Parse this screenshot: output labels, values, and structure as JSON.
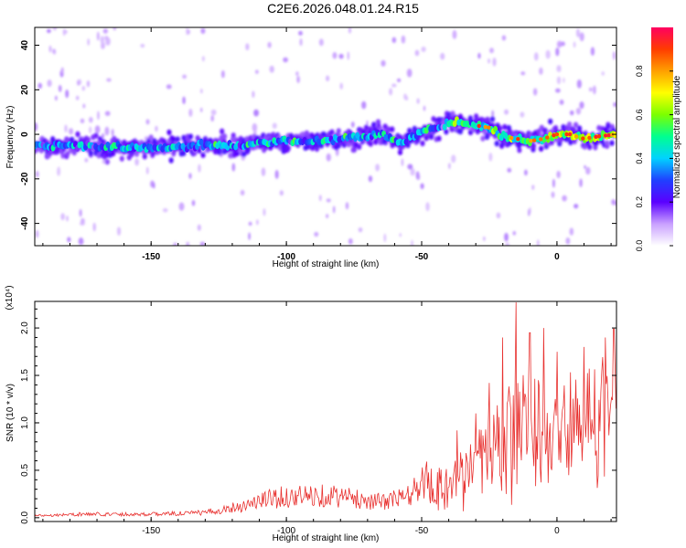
{
  "title": "C2E6.2026.048.01.24.R15",
  "chart_data": [
    {
      "type": "heatmap",
      "xlabel": "Height of straight line (km)",
      "ylabel": "Frequency (Hz)",
      "xlim": [
        -193,
        22
      ],
      "ylim": [
        -50,
        48
      ],
      "x_ticks": [
        -150,
        -100,
        -50,
        0
      ],
      "x_tick_labels": [
        "-150",
        "-100",
        "-50",
        "0"
      ],
      "y_ticks": [
        -40,
        -20,
        0,
        20,
        40
      ],
      "y_tick_labels": [
        "-40",
        "-20",
        "0",
        "20",
        "40"
      ],
      "colorbar": {
        "label": "Normalized spectral amplitude",
        "range": [
          0,
          1
        ],
        "ticks": [
          0.0,
          0.2,
          0.4,
          0.6,
          0.8
        ],
        "tick_labels": [
          "0.0",
          "0.2",
          "0.4",
          "0.6",
          "0.8"
        ],
        "colors": [
          "#ffffff",
          "#c9a0ff",
          "#5a00ff",
          "#2040ff",
          "#00d2ff",
          "#00ff90",
          "#7cff00",
          "#ffff00",
          "#ffa000",
          "#ff3c00",
          "#ff0060"
        ]
      },
      "ridge": [
        {
          "x": -193,
          "y": -5
        },
        {
          "x": -175,
          "y": -5
        },
        {
          "x": -160,
          "y": -6
        },
        {
          "x": -145,
          "y": -6
        },
        {
          "x": -130,
          "y": -5
        },
        {
          "x": -115,
          "y": -5
        },
        {
          "x": -105,
          "y": -3
        },
        {
          "x": -95,
          "y": -3
        },
        {
          "x": -85,
          "y": -3
        },
        {
          "x": -75,
          "y": -1
        },
        {
          "x": -65,
          "y": 0
        },
        {
          "x": -58,
          "y": -4
        },
        {
          "x": -50,
          "y": 1
        },
        {
          "x": -45,
          "y": 3
        },
        {
          "x": -38,
          "y": 6
        },
        {
          "x": -34,
          "y": 5
        },
        {
          "x": -30,
          "y": 4
        },
        {
          "x": -25,
          "y": 3
        },
        {
          "x": -20,
          "y": -1
        },
        {
          "x": -15,
          "y": -2
        },
        {
          "x": -10,
          "y": -3
        },
        {
          "x": -5,
          "y": -2
        },
        {
          "x": 0,
          "y": 0
        },
        {
          "x": 5,
          "y": 0
        },
        {
          "x": 10,
          "y": -2
        },
        {
          "x": 15,
          "y": -1
        },
        {
          "x": 22,
          "y": 0
        }
      ]
    },
    {
      "type": "line",
      "xlabel": "Height of straight line (km)",
      "ylabel": "SNR (10 * v/v)",
      "y_multiplier": "(x10⁴)",
      "xlim": [
        -193,
        22
      ],
      "ylim": [
        -0.04,
        2.28
      ],
      "x_ticks": [
        -150,
        -100,
        -50,
        0
      ],
      "x_tick_labels": [
        "-150",
        "-100",
        "-50",
        "0"
      ],
      "y_ticks": [
        0.0,
        0.5,
        1.0,
        1.5,
        2.0
      ],
      "y_tick_labels": [
        "0.0",
        "0.5",
        "1.0",
        "1.5",
        "2.0"
      ],
      "series_color": "#e8312f",
      "envelope": [
        {
          "x": -193,
          "y": 0.03
        },
        {
          "x": -175,
          "y": 0.05
        },
        {
          "x": -150,
          "y": 0.05
        },
        {
          "x": -130,
          "y": 0.07
        },
        {
          "x": -115,
          "y": 0.18
        },
        {
          "x": -105,
          "y": 0.28
        },
        {
          "x": -95,
          "y": 0.3
        },
        {
          "x": -85,
          "y": 0.32
        },
        {
          "x": -75,
          "y": 0.27
        },
        {
          "x": -65,
          "y": 0.22
        },
        {
          "x": -55,
          "y": 0.3
        },
        {
          "x": -48,
          "y": 0.55
        },
        {
          "x": -42,
          "y": 0.45
        },
        {
          "x": -35,
          "y": 0.62
        },
        {
          "x": -28,
          "y": 0.85
        },
        {
          "x": -22,
          "y": 1.05
        },
        {
          "x": -17,
          "y": 1.25
        },
        {
          "x": -13,
          "y": 1.45
        },
        {
          "x": -8,
          "y": 1.3
        },
        {
          "x": -3,
          "y": 1.4
        },
        {
          "x": 3,
          "y": 1.45
        },
        {
          "x": 8,
          "y": 1.4
        },
        {
          "x": 14,
          "y": 1.5
        },
        {
          "x": 22,
          "y": 1.65
        }
      ],
      "peaks": [
        {
          "x": -37,
          "y": 0.92
        },
        {
          "x": -30,
          "y": 1.1
        },
        {
          "x": -25,
          "y": 1.42
        },
        {
          "x": -20,
          "y": 1.9
        },
        {
          "x": -15,
          "y": 2.27
        },
        {
          "x": -10,
          "y": 1.95
        },
        {
          "x": -5,
          "y": 2.0
        },
        {
          "x": 0,
          "y": 1.75
        },
        {
          "x": 10,
          "y": 1.8
        },
        {
          "x": 18,
          "y": 1.9
        },
        {
          "x": 21,
          "y": 1.99
        }
      ]
    }
  ]
}
